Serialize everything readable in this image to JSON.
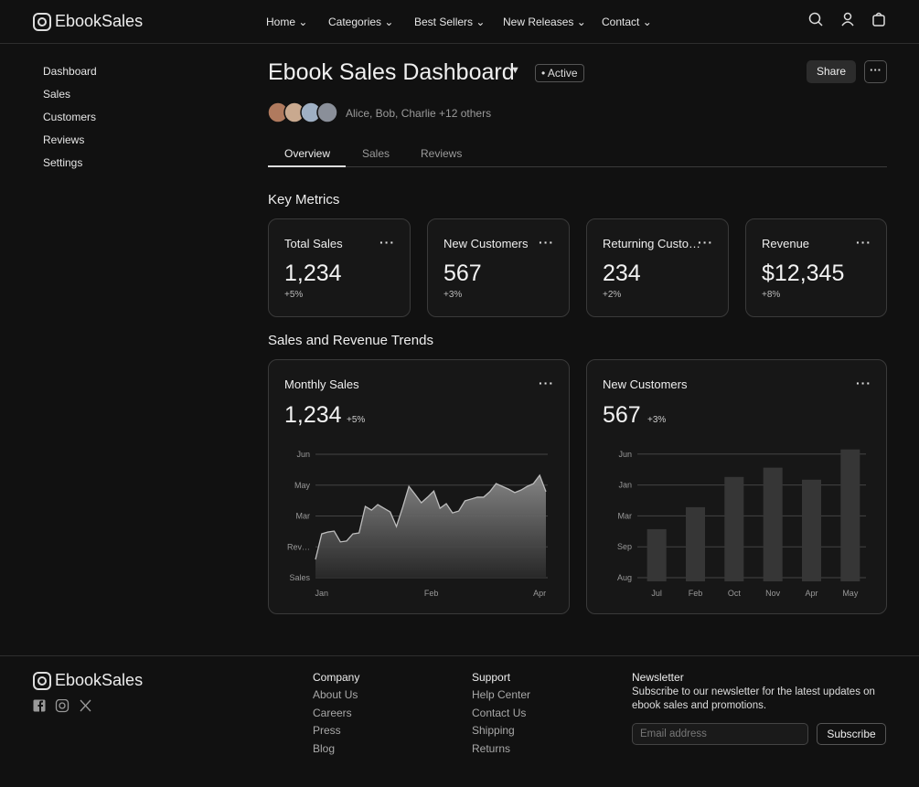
{
  "header": {
    "brand": "EbookSales",
    "nav": [
      "Home",
      "Categories",
      "Best Sellers",
      "New Releases",
      "Contact"
    ]
  },
  "sidebar": [
    "Dashboard",
    "Sales",
    "Customers",
    "Reviews",
    "Settings"
  ],
  "page": {
    "title": "Ebook Sales Dashboard",
    "status": "Active",
    "share": "Share",
    "members": "Alice, Bob, Charlie +12 others",
    "tabs": [
      "Overview",
      "Sales",
      "Reviews"
    ]
  },
  "metrics": {
    "heading": "Key Metrics",
    "cards": [
      {
        "label": "Total Sales",
        "value": "1,234",
        "change": "+5%"
      },
      {
        "label": "New Customers",
        "value": "567",
        "change": "+3%"
      },
      {
        "label": "Returning Custo…",
        "value": "234",
        "change": "+2%"
      },
      {
        "label": "Revenue",
        "value": "$12,345",
        "change": "+8%"
      }
    ]
  },
  "trends": {
    "heading": "Sales and Revenue Trends"
  },
  "chart_data": [
    {
      "type": "area",
      "title": "Monthly Sales",
      "total": "1,234",
      "change": "+5%",
      "color": "#bdbdbd",
      "values": [
        0.59,
        1.42,
        1.48,
        1.51,
        1.16,
        1.19,
        1.42,
        1.45,
        2.31,
        2.19,
        2.37,
        2.25,
        2.13,
        1.66,
        2.28,
        2.96,
        2.7,
        2.43,
        2.61,
        2.81,
        2.25,
        2.4,
        2.1,
        2.16,
        2.49,
        2.55,
        2.61,
        2.61,
        2.79,
        3.05,
        2.96,
        2.87,
        2.76,
        2.84,
        2.96,
        3.05,
        3.32,
        2.79
      ],
      "xlim": [
        0,
        37
      ],
      "xticks": [
        {
          "value": 1,
          "label": "Jan"
        },
        {
          "value": 18.6,
          "label": "Feb"
        },
        {
          "value": 36,
          "label": "Apr"
        }
      ],
      "ylim": [
        0,
        4
      ],
      "yticks": [
        {
          "value": 0,
          "label": "Sales"
        },
        {
          "value": 1,
          "label": "Rev…"
        },
        {
          "value": 2,
          "label": "Mar"
        },
        {
          "value": 3,
          "label": "May"
        },
        {
          "value": 4,
          "label": "Jun"
        }
      ],
      "grid": true
    },
    {
      "type": "bar",
      "title": "New Customers",
      "total": "567",
      "change": "+3%",
      "color": "#363636",
      "categories": [
        "Jul",
        "Feb",
        "Oct",
        "Nov",
        "Apr",
        "May"
      ],
      "values": [
        1.57,
        2.28,
        3.26,
        3.56,
        3.17,
        4.15
      ],
      "ylim": [
        0,
        4.2
      ],
      "yticks": [
        {
          "value": 0,
          "label": "Aug"
        },
        {
          "value": 1,
          "label": "Sep"
        },
        {
          "value": 2,
          "label": "Mar"
        },
        {
          "value": 3,
          "label": "Jan"
        },
        {
          "value": 4,
          "label": "Jun"
        }
      ],
      "grid": true
    }
  ],
  "footer": {
    "brand": "EbookSales",
    "columns": [
      {
        "heading": "Company",
        "links": [
          "About Us",
          "Careers",
          "Press",
          "Blog"
        ]
      },
      {
        "heading": "Support",
        "links": [
          "Help Center",
          "Contact Us",
          "Shipping",
          "Returns"
        ]
      }
    ],
    "newsletter": {
      "heading": "Newsletter",
      "text": "Subscribe to our newsletter for the latest updates on ebook sales and promotions.",
      "placeholder": "Email address",
      "button": "Subscribe"
    }
  }
}
